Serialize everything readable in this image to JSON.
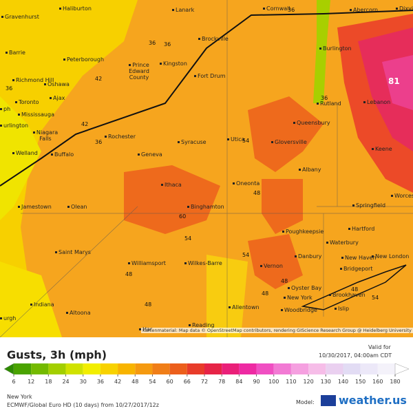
{
  "map": {
    "cities": [
      "Gravenhurst",
      "Haliburton",
      "Lanark",
      "Cornwall",
      "Abercorn",
      "Dixvill",
      "Barrie",
      "Peterborough",
      "Brockville",
      "Burlington",
      "Kingston",
      "Prince Edward County",
      "Richmond Hill",
      "Oshawa",
      "Fort Drum",
      "Toronto",
      "Ajax",
      "Rutland",
      "Lebanon",
      "Mississauga",
      "Queensbury",
      "urlington",
      "ph",
      "Niagara Falls",
      "Rochester",
      "Syracuse",
      "Utica",
      "Gloversville",
      "Keene",
      "Welland",
      "Buffalo",
      "Geneva",
      "Albany",
      "Ithaca",
      "Oneonta",
      "Worces",
      "Jamestown",
      "Olean",
      "Binghamton",
      "Springfield",
      "Poughkeepsie",
      "Hartford",
      "Saint Marys",
      "Waterbury",
      "Danbury",
      "New Haven",
      "New London",
      "Williamsport",
      "Wilkes-Barre",
      "Vernon",
      "Bridgeport",
      "Oyster Bay",
      "Brookhaven",
      "New York",
      "Islip",
      "Woodbridge",
      "Indiana",
      "Altoona",
      "Allentown",
      "Reading",
      "Har",
      "urgh"
    ],
    "value_labels": [
      36,
      36,
      36,
      42,
      36,
      36,
      42,
      36,
      54,
      81,
      48,
      60,
      54,
      54,
      48,
      48,
      48,
      48,
      54,
      48
    ],
    "attribution": "Kartenmaterial: Map data © OpenStreetMap contributors, rendering GIScience Research Group @ Heidelberg University"
  },
  "legend": {
    "title": "Gusts, 3h (mph)",
    "valid_label": "Valid for",
    "valid_time": "10/30/2017, 04:00am CDT",
    "ticks": [
      6,
      12,
      18,
      24,
      30,
      36,
      42,
      48,
      54,
      60,
      66,
      72,
      78,
      84,
      90,
      100,
      110,
      120,
      130,
      140,
      150,
      160,
      180
    ],
    "colors": [
      "#2e8b00",
      "#4aa300",
      "#74ba00",
      "#a3cf00",
      "#d0e200",
      "#f2ee00",
      "#f8d200",
      "#f8b400",
      "#f59a10",
      "#f07e18",
      "#ec5f1c",
      "#e83c2a",
      "#e62447",
      "#ea2079",
      "#ee2aa3",
      "#f04fc2",
      "#f27ad4",
      "#f5a0e0",
      "#f6bde8",
      "#ead0f0",
      "#e2dcf4",
      "#ece8f8",
      "#f4f2fa",
      "#ffffff"
    ]
  },
  "footer": {
    "region": "New York",
    "model_run": "ECMWF/Global Euro HD (10 days) from 10/27/2017/12z",
    "model_label": "Model:",
    "brand": "weather.us"
  }
}
